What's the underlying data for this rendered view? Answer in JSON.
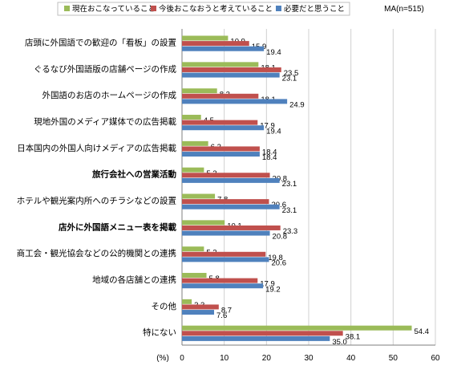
{
  "chart_data": {
    "type": "bar",
    "orientation": "horizontal",
    "note": "MA(n=515)",
    "unit_label": "(%)",
    "xlim": [
      0,
      60
    ],
    "x_ticks": [
      0,
      10,
      20,
      30,
      40,
      50,
      60
    ],
    "grid": true,
    "legend_position": "top",
    "categories": [
      "店頭に外国語での歓迎の「看板」の設置",
      "ぐるなび外国語版の店舗ページの作成",
      "外国語のお店のホームページの作成",
      "現地外国のメディア媒体での広告掲載",
      "日本国内の外国人向けメディアの広告掲載",
      "旅行会社への営業活動",
      "ホテルや観光案内所へのチラシなどの設置",
      "店外に外国語メニュー表を掲載",
      "商工会・観光協会などの公的機関との連携",
      "地域の各店舗との連携",
      "その他",
      "特にない"
    ],
    "bold_categories": [
      "旅行会社への営業活動",
      "店外に外国語メニュー表を掲載"
    ],
    "series": [
      {
        "name": "現在おこなっていること",
        "color": "#9BBB59",
        "values": [
          10.9,
          18.1,
          8.3,
          4.5,
          6.2,
          5.2,
          7.8,
          10.1,
          5.2,
          5.8,
          2.3,
          54.4
        ]
      },
      {
        "name": "今後おこなおうと考えていること",
        "color": "#C0504D",
        "values": [
          15.9,
          23.5,
          18.1,
          17.9,
          18.4,
          20.8,
          20.6,
          23.3,
          19.8,
          17.9,
          8.7,
          38.1
        ]
      },
      {
        "name": "必要だと思うこと",
        "color": "#4F81BD",
        "values": [
          19.4,
          23.1,
          24.9,
          19.4,
          18.4,
          23.1,
          23.1,
          20.8,
          20.6,
          19.2,
          7.6,
          35.0
        ]
      }
    ]
  }
}
